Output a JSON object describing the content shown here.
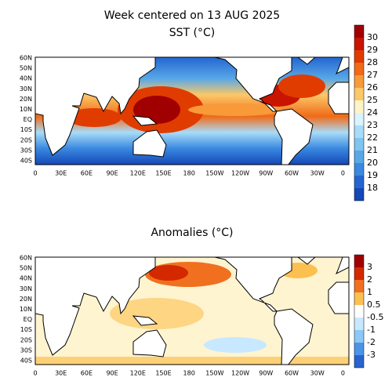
{
  "title": "Week centered on 13 AUG 2025",
  "panels": [
    {
      "title": "SST (°C)",
      "lat_labels": [
        "60N",
        "50N",
        "40N",
        "30N",
        "20N",
        "10N",
        "EQ",
        "10S",
        "20S",
        "30S",
        "40S"
      ],
      "lon_labels": [
        "0",
        "30E",
        "60E",
        "90E",
        "120E",
        "150E",
        "180",
        "150W",
        "120W",
        "90W",
        "60W",
        "30W",
        "0"
      ],
      "colorbar": {
        "labels": [
          "30",
          "29",
          "28",
          "27",
          "26",
          "25",
          "24",
          "23",
          "22",
          "21",
          "20",
          "19",
          "18"
        ],
        "colors": [
          "#a00000",
          "#c81400",
          "#e03c00",
          "#f06a18",
          "#f89a38",
          "#fcc868",
          "#fff4c8",
          "#d8f4ff",
          "#a8dcf8",
          "#80c4f0",
          "#58a8e8",
          "#3a88e0",
          "#2466d0",
          "#1448b8"
        ]
      }
    },
    {
      "title": "Anomalies (°C)",
      "lat_labels": [
        "60N",
        "50N",
        "40N",
        "30N",
        "20N",
        "10N",
        "EQ",
        "10S",
        "20S",
        "30S",
        "40S"
      ],
      "lon_labels": [
        "0",
        "30E",
        "60E",
        "90E",
        "120E",
        "150E",
        "180",
        "150W",
        "120W",
        "90W",
        "60W",
        "30W",
        "0"
      ],
      "colorbar": {
        "labels": [
          "3",
          "2",
          "1",
          "0.5",
          "-0.5",
          "-1",
          "-2",
          "-3"
        ],
        "colors": [
          "#a00000",
          "#d42800",
          "#f07020",
          "#fcc050",
          "#ffffff",
          "#c8e8ff",
          "#8cc8f8",
          "#4c94e8",
          "#2864d0"
        ]
      }
    }
  ]
}
